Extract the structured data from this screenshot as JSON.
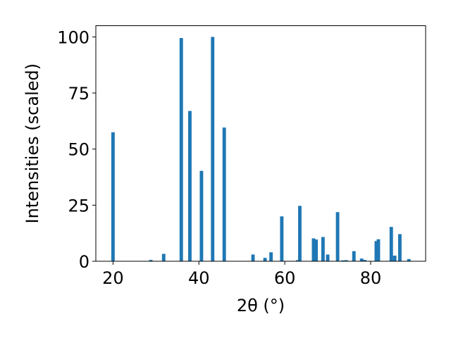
{
  "chart_data": {
    "type": "bar",
    "xlabel": "2θ (°)",
    "ylabel": "Intensities (scaled)",
    "xlim": [
      16.0,
      92.8
    ],
    "ylim": [
      0,
      105
    ],
    "xticks": [
      20,
      40,
      60,
      80
    ],
    "yticks": [
      0,
      25,
      50,
      75,
      100
    ],
    "grid": false,
    "bar_width": 0.8,
    "color": "#1f77b4",
    "x": [
      20.0,
      28.8,
      31.8,
      35.9,
      37.9,
      40.6,
      43.2,
      45.9,
      52.6,
      55.4,
      56.8,
      59.3,
      63.0,
      63.5,
      66.7,
      67.3,
      68.9,
      70.0,
      72.3,
      73.5,
      74.3,
      76.1,
      77.9,
      78.6,
      81.3,
      81.8,
      84.8,
      85.6,
      86.8,
      88.9
    ],
    "values": [
      57.5,
      0.6,
      3.3,
      99.5,
      67.0,
      40.3,
      100.0,
      59.6,
      3.0,
      1.5,
      4.0,
      20.0,
      0.5,
      24.7,
      10.2,
      9.7,
      10.8,
      3.0,
      21.9,
      0.4,
      0.5,
      4.5,
      1.2,
      0.6,
      9.0,
      9.8,
      15.3,
      2.5,
      12.1,
      1.0
    ]
  }
}
